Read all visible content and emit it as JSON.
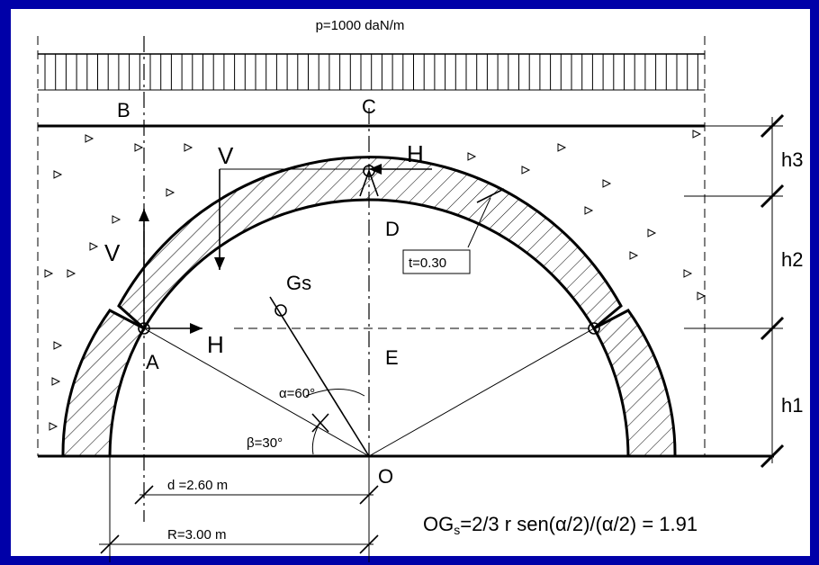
{
  "load": "p=1000 daN/m",
  "points": {
    "B": "B",
    "C": "C",
    "D": "D",
    "E": "E",
    "A": "A",
    "O": "O",
    "Gs": "Gs"
  },
  "forces": {
    "h_top": "H",
    "v_top": "V",
    "v_left": "V",
    "h_left": "H"
  },
  "thickness": "t=0.30",
  "heights": {
    "h3": "h3",
    "h2": "h2",
    "h1": "h1"
  },
  "angles": {
    "alpha": "α=60°",
    "beta": "β=30°"
  },
  "dimensions": {
    "d": "d =2.60 m",
    "R": "R=3.00 m"
  },
  "formula": {
    "prefix": "OG",
    "subscript": "s",
    "rest": "=2/3 r sen(α/2)/(α/2) = 1.91"
  }
}
